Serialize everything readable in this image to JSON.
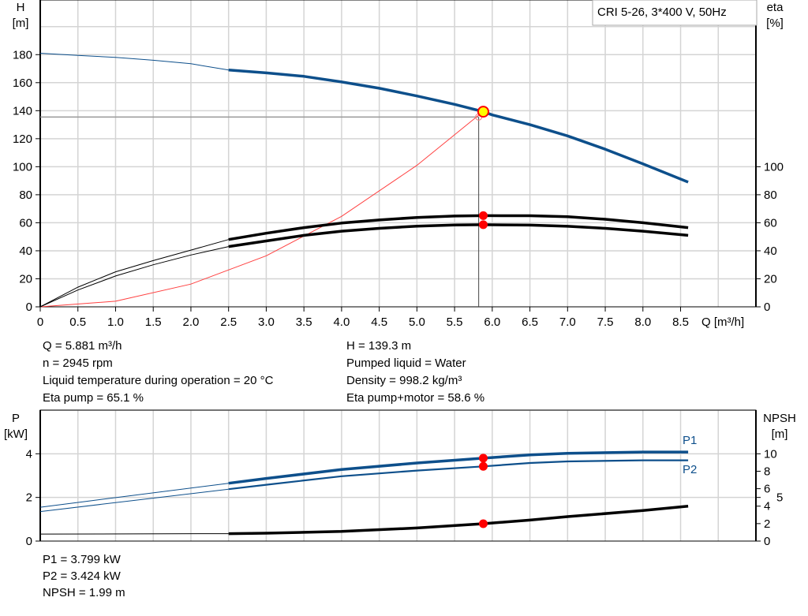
{
  "chart_data": [
    {
      "type": "line",
      "title": "CRI 5-26, 3*400 V, 50Hz",
      "xlabel": "Q [m³/h]",
      "ylabel_left": {
        "name": "H",
        "unit": "[m]"
      },
      "ylabel_right": {
        "name": "eta",
        "unit": "[%]"
      },
      "xlim": [
        0,
        9.5
      ],
      "ylim_left": [
        0,
        219
      ],
      "ylim_right": [
        0,
        219
      ],
      "x_ticks": [
        "0",
        "0.5",
        "1.0",
        "1.5",
        "2.0",
        "2.5",
        "3.0",
        "3.5",
        "4.0",
        "4.5",
        "5.0",
        "5.5",
        "6.0",
        "6.5",
        "7.0",
        "7.5",
        "8.0",
        "8.5"
      ],
      "y_ticks_left": [
        0,
        20,
        40,
        60,
        80,
        100,
        120,
        140,
        160,
        180
      ],
      "y_ticks_right": [
        0,
        20,
        40,
        60,
        80,
        100
      ],
      "grid": true,
      "thin_until_q": 2.5,
      "series": [
        {
          "key": "H",
          "axis": "left",
          "color": "#0d4f8b",
          "points": [
            [
              0,
              181
            ],
            [
              0.5,
              179.5
            ],
            [
              1,
              178
            ],
            [
              1.5,
              176
            ],
            [
              2,
              173.5
            ],
            [
              2.5,
              169
            ],
            [
              3,
              167
            ],
            [
              3.5,
              164.5
            ],
            [
              4,
              160.5
            ],
            [
              4.5,
              156
            ],
            [
              5,
              150.5
            ],
            [
              5.5,
              144.5
            ],
            [
              5.881,
              139.3
            ],
            [
              6,
              137
            ],
            [
              6.5,
              130
            ],
            [
              7,
              122
            ],
            [
              7.5,
              112.5
            ],
            [
              8,
              102
            ],
            [
              8.6,
              89
            ]
          ]
        },
        {
          "key": "eta_pump",
          "axis": "right",
          "color": "#000000",
          "points": [
            [
              0,
              0
            ],
            [
              0.5,
              14
            ],
            [
              1,
              25
            ],
            [
              1.5,
              33
            ],
            [
              2,
              40.5
            ],
            [
              2.5,
              48
            ],
            [
              3,
              52.5
            ],
            [
              3.5,
              56.5
            ],
            [
              4,
              59.8
            ],
            [
              4.5,
              62
            ],
            [
              5,
              63.8
            ],
            [
              5.5,
              64.8
            ],
            [
              5.881,
              65.1
            ],
            [
              6.5,
              65
            ],
            [
              7,
              64.3
            ],
            [
              7.5,
              62.5
            ],
            [
              8,
              60
            ],
            [
              8.6,
              56.5
            ]
          ]
        },
        {
          "key": "eta_pump_motor",
          "axis": "right",
          "color": "#000000",
          "points": [
            [
              0,
              0
            ],
            [
              0.5,
              12
            ],
            [
              1,
              22
            ],
            [
              1.5,
              30
            ],
            [
              2,
              37
            ],
            [
              2.5,
              43
            ],
            [
              3,
              47
            ],
            [
              3.5,
              51
            ],
            [
              4,
              54
            ],
            [
              4.5,
              56
            ],
            [
              5,
              57.6
            ],
            [
              5.5,
              58.4
            ],
            [
              5.881,
              58.6
            ],
            [
              6.5,
              58.3
            ],
            [
              7,
              57.5
            ],
            [
              7.5,
              56
            ],
            [
              8,
              54
            ],
            [
              8.6,
              51
            ]
          ]
        }
      ],
      "system_curve": {
        "color": "#ff4040",
        "points": [
          [
            0,
            0
          ],
          [
            1,
            4
          ],
          [
            2,
            16.2
          ],
          [
            3,
            36.4
          ],
          [
            4,
            64.6
          ],
          [
            5,
            101
          ],
          [
            5.82,
            136.8
          ]
        ]
      },
      "crosshair": {
        "q": 5.82,
        "h": 135.5
      },
      "duty_point": {
        "q": 5.881,
        "h": 139.3,
        "eta_pump": 65.1,
        "eta_pump_motor": 58.6,
        "fill": "#ffff00",
        "stroke": "#ff0000"
      }
    },
    {
      "type": "line",
      "xlim": [
        0,
        9.5
      ],
      "ylabel_left": {
        "name": "P",
        "unit": "[kW]"
      },
      "ylabel_right": {
        "name": "NPSH",
        "unit": "[m]"
      },
      "ylim_left": [
        0,
        6
      ],
      "ylim_right": [
        0,
        15
      ],
      "y_ticks_left": [
        0,
        2,
        4
      ],
      "y_ticks_right": [
        0,
        2,
        4,
        5,
        6,
        8,
        10
      ],
      "grid": true,
      "thin_until_q": 2.5,
      "series": [
        {
          "key": "P1",
          "name": "P1",
          "axis": "left",
          "color": "#0d4f8b",
          "width": 3.5,
          "points": [
            [
              0,
              1.55
            ],
            [
              2.5,
              2.65
            ],
            [
              3,
              2.87
            ],
            [
              4,
              3.28
            ],
            [
              5,
              3.58
            ],
            [
              5.881,
              3.799
            ],
            [
              6.5,
              3.95
            ],
            [
              7,
              4.02
            ],
            [
              8,
              4.08
            ],
            [
              8.6,
              4.08
            ]
          ]
        },
        {
          "key": "P2",
          "name": "P2",
          "axis": "left",
          "color": "#0d4f8b",
          "width": 2.2,
          "points": [
            [
              0,
              1.35
            ],
            [
              2.5,
              2.38
            ],
            [
              3,
              2.58
            ],
            [
              4,
              2.97
            ],
            [
              5,
              3.23
            ],
            [
              5.881,
              3.424
            ],
            [
              6.5,
              3.58
            ],
            [
              7,
              3.65
            ],
            [
              8,
              3.7
            ],
            [
              8.6,
              3.7
            ]
          ]
        },
        {
          "key": "NPSH",
          "axis": "right",
          "color": "#000000",
          "width": 3.5,
          "points": [
            [
              0,
              0.8
            ],
            [
              2.5,
              0.85
            ],
            [
              3,
              0.9
            ],
            [
              4,
              1.1
            ],
            [
              5,
              1.5
            ],
            [
              5.881,
              1.99
            ],
            [
              6.5,
              2.4
            ],
            [
              7,
              2.8
            ],
            [
              8,
              3.5
            ],
            [
              8.6,
              4.0
            ]
          ]
        }
      ],
      "duty_point": {
        "q": 5.881,
        "P1": 3.799,
        "P2": 3.424,
        "NPSH": 1.99,
        "color": "#ff0000"
      }
    }
  ],
  "info": {
    "left": [
      "Q = 5.881 m³/h",
      "n = 2945 rpm",
      "Liquid temperature during operation = 20 °C",
      "Eta pump = 65.1 %"
    ],
    "right": [
      "H = 139.3 m",
      "Pumped liquid = Water",
      "Density = 998.2 kg/m³",
      "Eta pump+motor = 58.6 %"
    ],
    "bottom": [
      "P1 = 3.799 kW",
      "P2 = 3.424 kW",
      "NPSH = 1.99 m"
    ]
  }
}
